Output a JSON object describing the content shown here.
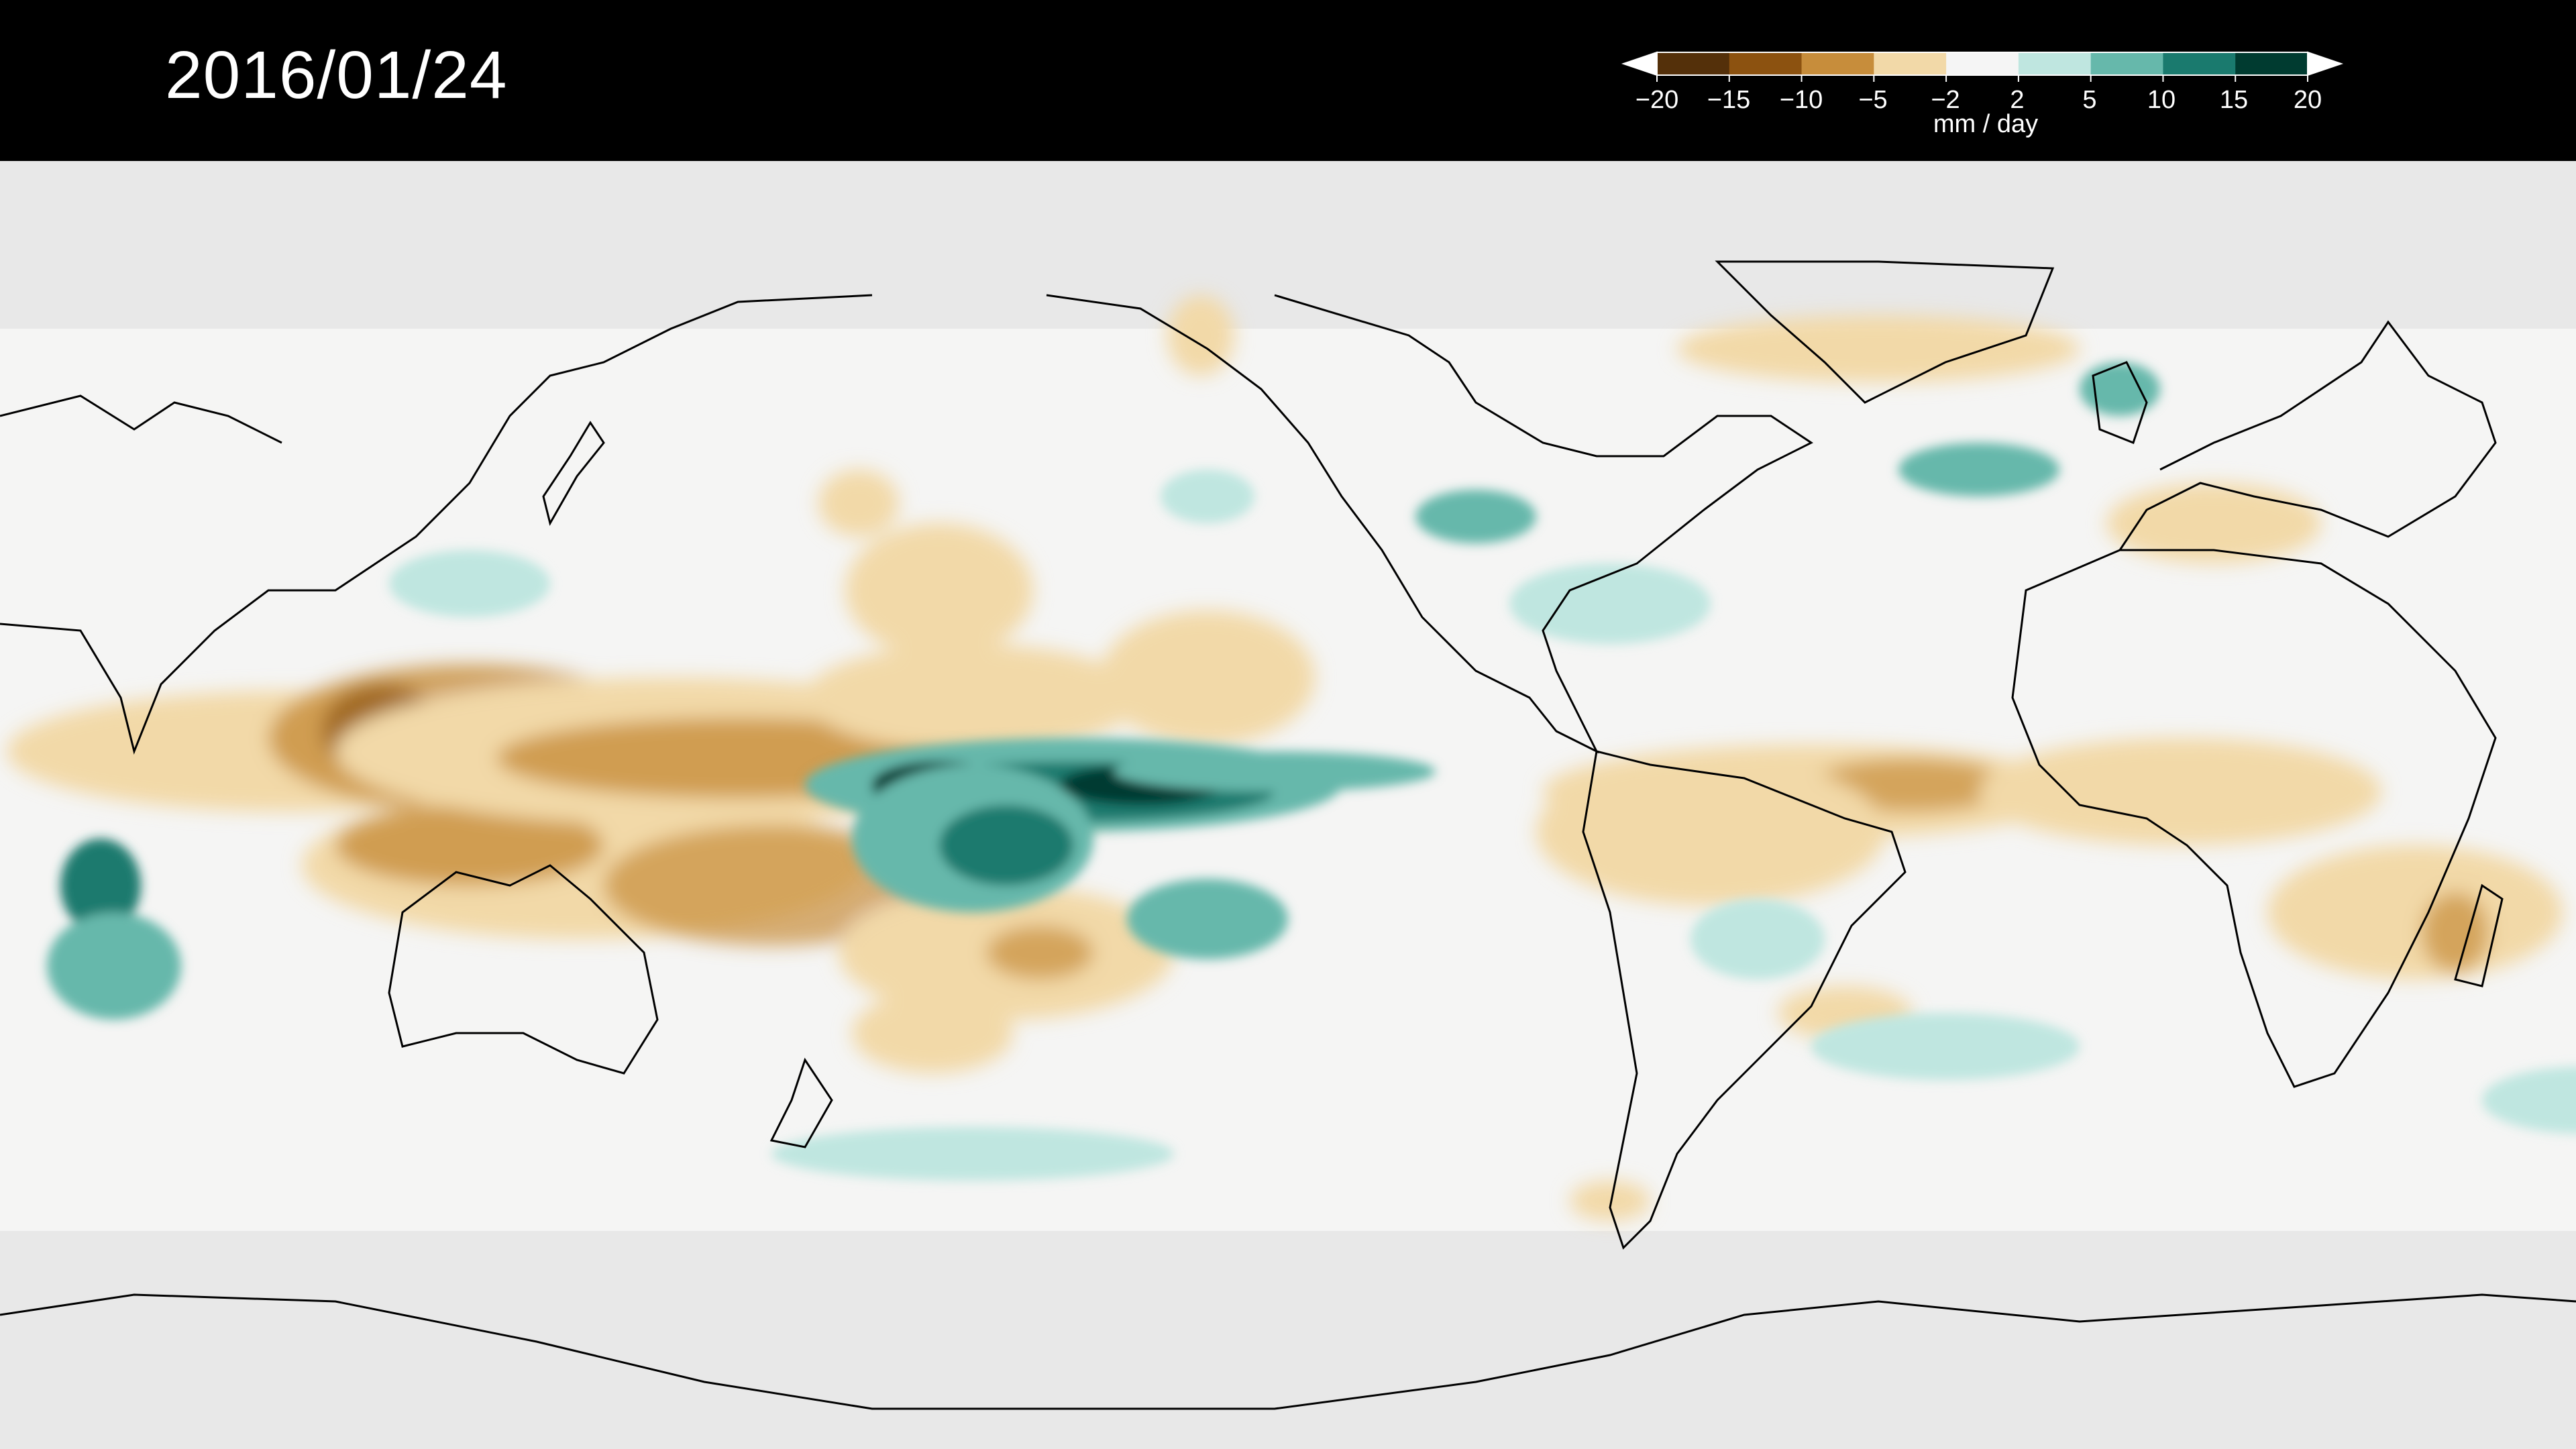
{
  "title": {
    "date": "2016/01/24"
  },
  "colorbar": {
    "units": "mm / day",
    "ticks": [
      "−20",
      "−15",
      "−10",
      "−5",
      "−2",
      "2",
      "5",
      "10",
      "15",
      "20"
    ],
    "colors": [
      "#54300a",
      "#8c5210",
      "#c78d3b",
      "#f2d9a8",
      "#f5f5f5",
      "#bfe6e0",
      "#66b8ab",
      "#1a7a6e",
      "#003b30"
    ],
    "extend": "both"
  },
  "map": {
    "projection": "equirectangular",
    "central_longitude": 180,
    "variable": "precipitation anomaly",
    "masked_color": "#e8e8e8",
    "background_color": "#f5f5f4"
  }
}
